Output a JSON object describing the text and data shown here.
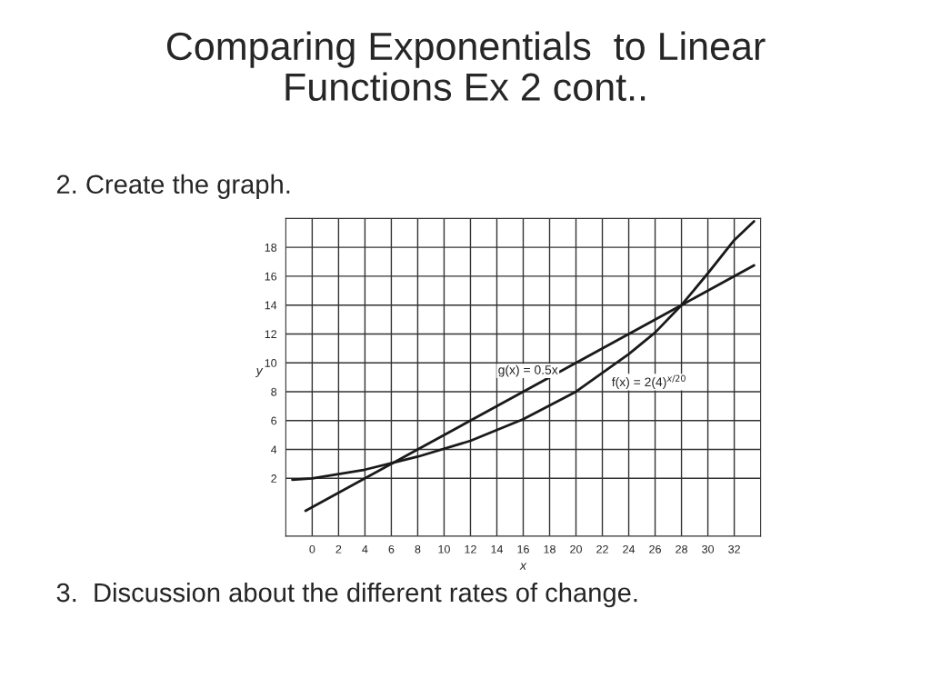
{
  "chart_data": {
    "type": "line",
    "title": "Comparing Exponentials  to Linear\nFunctions Ex 2 cont..",
    "xlabel": "x",
    "ylabel": "y",
    "series": [
      {
        "color": "#1a1a1a",
        "x": [
          -1.5,
          0,
          4,
          8,
          12,
          16,
          20,
          24,
          26,
          28,
          30,
          32,
          33.5
        ],
        "values": [
          1.9,
          2,
          2.6,
          3.5,
          4.6,
          6.1,
          8,
          10.6,
          12.1,
          14,
          16.2,
          18.5,
          19.8
        ]
      },
      {
        "color": "#1a1a1a",
        "x": [
          -0.5,
          8,
          16,
          28,
          33.5
        ],
        "values": [
          -0.25,
          4,
          8,
          14,
          16.75
        ]
      }
    ],
    "xlim": [
      -2,
      34
    ],
    "ylim": [
      -2,
      20
    ],
    "xticks": [
      0,
      2,
      4,
      6,
      8,
      10,
      12,
      14,
      16,
      18,
      20,
      22,
      24,
      26,
      28,
      30,
      32
    ],
    "yticks": [
      2,
      4,
      6,
      8,
      10,
      12,
      14,
      16,
      18
    ],
    "grid": true,
    "marker": "none",
    "line_style": "solid",
    "annotations": [
      "g(x) = 0.5x",
      "f(x) = 2(4)$^{x/20}$",
      "2. Create the graph.",
      "3.  Discussion about the different rates of change."
    ]
  }
}
